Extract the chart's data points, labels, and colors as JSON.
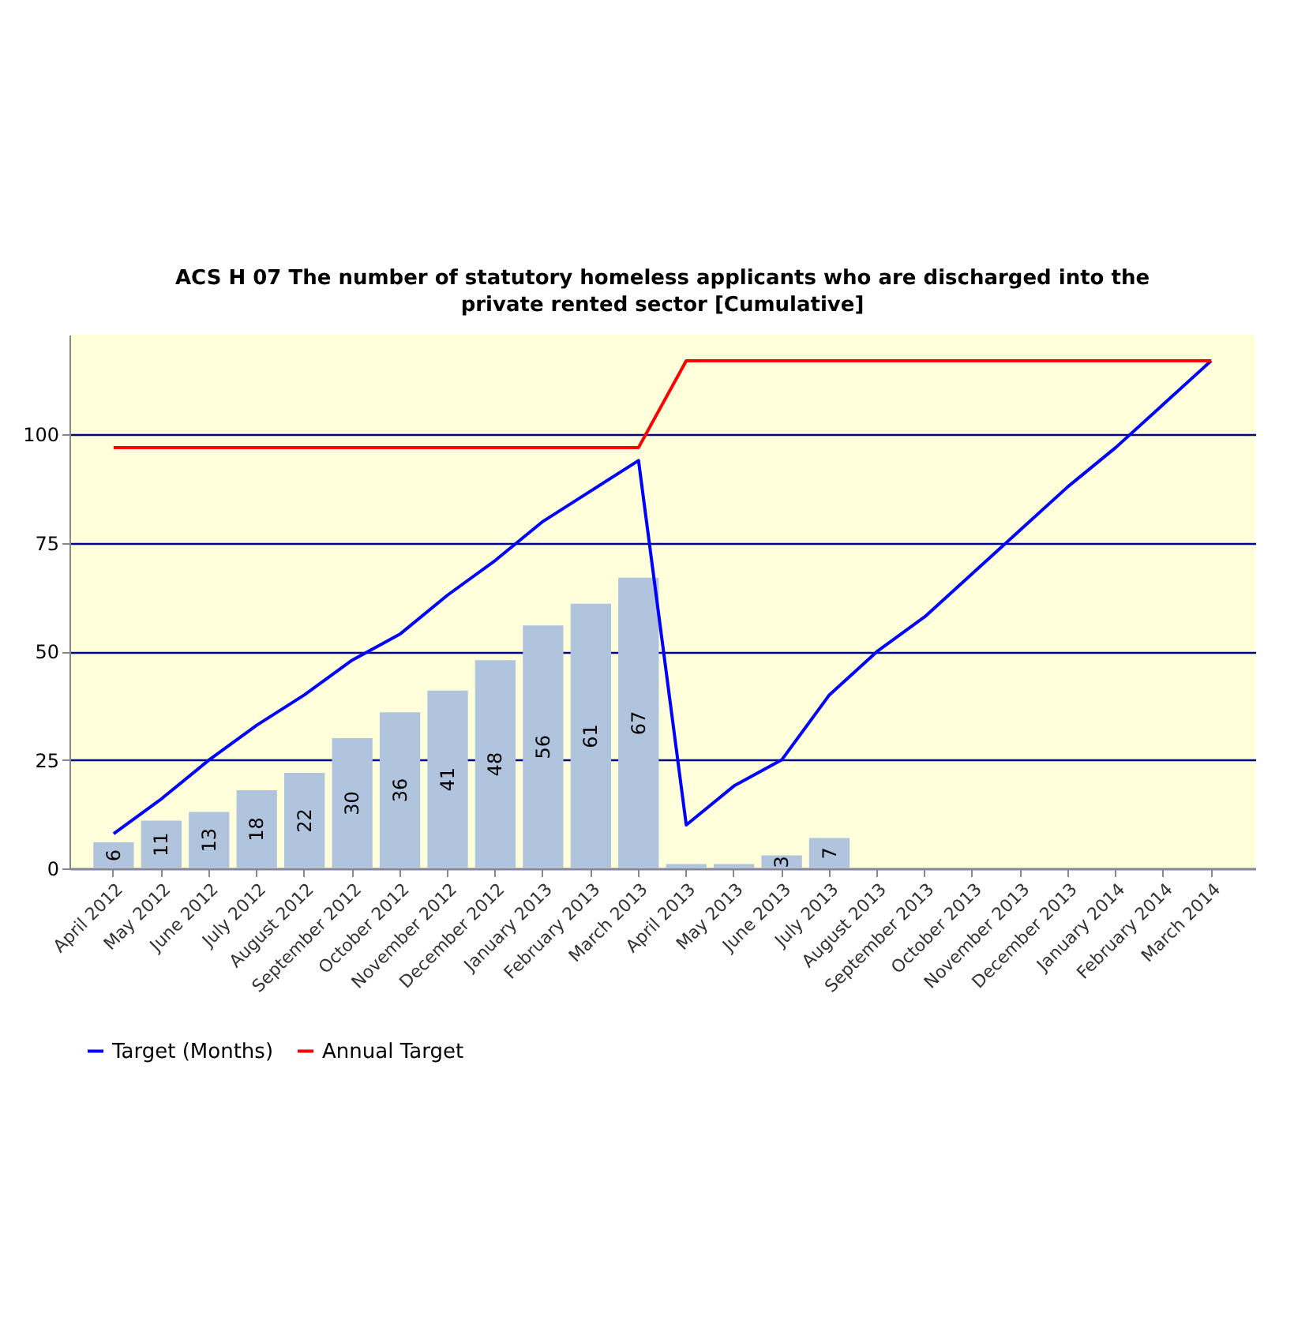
{
  "chart_data": {
    "type": "bar",
    "title": "ACS H 07 The number of statutory homeless applicants who are discharged into the private rented sector [Cumulative]",
    "categories": [
      "April 2012",
      "May 2012",
      "June 2012",
      "July 2012",
      "August 2012",
      "September 2012",
      "October 2012",
      "November 2012",
      "December 2012",
      "January 2013",
      "February 2013",
      "March 2013",
      "April 2013",
      "May 2013",
      "June 2013",
      "July 2013",
      "August 2013",
      "September 2013",
      "October 2013",
      "November 2013",
      "December 2013",
      "January 2014",
      "February 2014",
      "March 2014"
    ],
    "series": [
      {
        "color": "#b0c4de",
        "values": [
          6,
          11,
          13,
          18,
          22,
          30,
          36,
          41,
          48,
          56,
          61,
          67,
          1,
          1,
          3,
          7,
          null,
          null,
          null,
          null,
          null,
          null,
          null,
          null
        ],
        "value_labels": [
          "6",
          "11",
          "13",
          "18",
          "22",
          "30",
          "36",
          "41",
          "48",
          "56",
          "61",
          "67",
          null,
          null,
          "3",
          "7",
          null,
          null,
          null,
          null,
          null,
          null,
          null,
          null
        ]
      },
      {
        "type": "line",
        "name": "Target (Months)",
        "color": "#0000ff",
        "values": [
          8,
          16,
          25,
          33,
          40,
          48,
          54,
          63,
          71,
          80,
          87,
          94,
          10,
          19,
          25,
          40,
          50,
          58,
          68,
          78,
          88,
          97,
          107,
          117
        ]
      },
      {
        "type": "line",
        "name": "Annual Target",
        "color": "#ff0000",
        "values": [
          97,
          97,
          97,
          97,
          97,
          97,
          97,
          97,
          97,
          97,
          97,
          97,
          117,
          117,
          117,
          117,
          117,
          117,
          117,
          117,
          117,
          117,
          117,
          117
        ]
      }
    ],
    "ylim": [
      0,
      123
    ],
    "yticks": [
      0,
      25,
      50,
      75,
      100
    ],
    "grid": "y",
    "legend": "bottom",
    "marker": "none",
    "line_style": "solid"
  }
}
